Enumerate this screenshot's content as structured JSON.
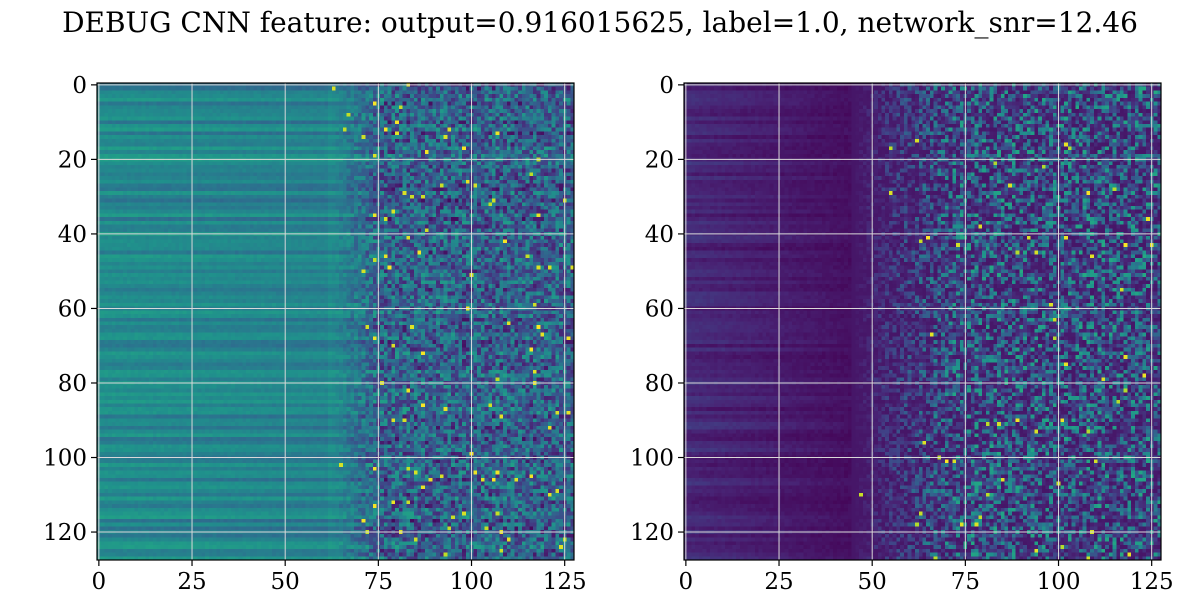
{
  "figure": {
    "title": "DEBUG CNN feature: output=0.916015625, label=1.0, network_snr=12.46"
  },
  "chart_data": [
    {
      "type": "heatmap",
      "title": "",
      "xlabel": "",
      "ylabel": "",
      "colormap": "viridis",
      "grid": true,
      "xlim": [
        0,
        127
      ],
      "ylim": [
        127,
        0
      ],
      "x_ticks": [
        0,
        25,
        50,
        75,
        100,
        125
      ],
      "y_ticks": [
        0,
        20,
        40,
        60,
        80,
        100,
        120
      ],
      "x_tick_labels": [
        "0",
        "25",
        "50",
        "75",
        "100",
        "125"
      ],
      "y_tick_labels": [
        "0",
        "20",
        "40",
        "60",
        "80",
        "100",
        "120"
      ],
      "shape": [
        128,
        128
      ],
      "description_of_values": "Rows are horizontally banded (near-constant) for columns 0-~60, teal/green; columns ~75-127 are noisy with scattered bright yellow points.",
      "noise_start_column": 62
    },
    {
      "type": "heatmap",
      "title": "",
      "xlabel": "",
      "ylabel": "",
      "colormap": "viridis",
      "grid": true,
      "xlim": [
        0,
        127
      ],
      "ylim": [
        127,
        0
      ],
      "x_ticks": [
        0,
        25,
        50,
        75,
        100,
        125
      ],
      "y_ticks": [
        0,
        20,
        40,
        60,
        80,
        100,
        120
      ],
      "x_tick_labels": [
        "0",
        "25",
        "50",
        "75",
        "100",
        "125"
      ],
      "y_tick_labels": [
        "0",
        "20",
        "40",
        "60",
        "80",
        "100",
        "120"
      ],
      "shape": [
        128,
        128
      ],
      "description_of_values": "Mostly dark purple with faint horizontal banding on the left; columns ~50-127 noisy with blue/teal speckles and a few yellow points.",
      "noise_start_column": 45
    }
  ]
}
